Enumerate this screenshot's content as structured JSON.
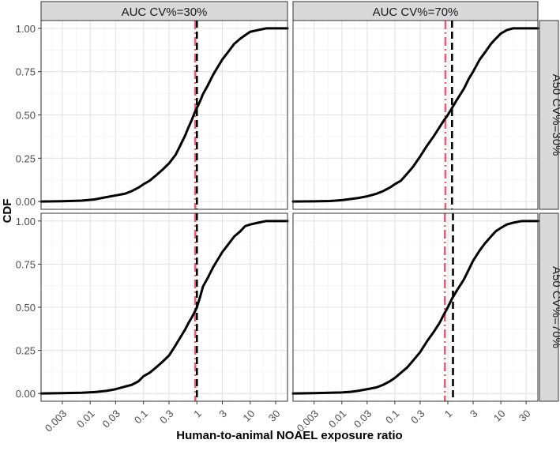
{
  "chart_data": {
    "type": "line",
    "title": "",
    "xlabel": "Human-to-animal NOAEL exposure ratio",
    "ylabel": "CDF",
    "x_scale": "log10",
    "xlim": [
      0.0012,
      50
    ],
    "ylim": [
      -0.045,
      1.045
    ],
    "x_ticks": [
      0.003,
      0.01,
      0.03,
      0.1,
      0.3,
      1,
      3,
      10,
      30
    ],
    "x_tick_labels": [
      "0.003",
      "0.01",
      "0.03",
      "0.1",
      "0.3",
      "1",
      "3",
      "10",
      "30"
    ],
    "y_ticks": [
      0,
      0.25,
      0.5,
      0.75,
      1
    ],
    "y_tick_labels": [
      "0.00",
      "0.25",
      "0.50",
      "0.75",
      "1.00"
    ],
    "grid": true,
    "column_strips": [
      "AUC CV%=30%",
      "AUC CV%=70%"
    ],
    "row_strips": [
      "A50 CV%=30%",
      "A50 CV%=70%"
    ],
    "reference_lines": [
      {
        "name": "red-dashdot-reference",
        "color": "#e0607e",
        "style": "dashdot"
      },
      {
        "name": "black-dashed-reference",
        "color": "#000000",
        "style": "dashed"
      }
    ],
    "panels": [
      {
        "row": 0,
        "col": 0,
        "ref_red_x": 0.93,
        "ref_black_x": 1.0,
        "cdf": {
          "x": [
            0.0012,
            0.003,
            0.007,
            0.012,
            0.02,
            0.03,
            0.045,
            0.06,
            0.08,
            0.1,
            0.13,
            0.17,
            0.22,
            0.3,
            0.4,
            0.5,
            0.6,
            0.7,
            0.8,
            0.9,
            1.0,
            1.15,
            1.3,
            1.6,
            2.0,
            2.5,
            3.0,
            4.0,
            5.0,
            6.5,
            8.0,
            10,
            14,
            20,
            50
          ],
          "y": [
            0.0,
            0.002,
            0.005,
            0.012,
            0.025,
            0.035,
            0.045,
            0.06,
            0.08,
            0.1,
            0.12,
            0.15,
            0.18,
            0.22,
            0.27,
            0.33,
            0.38,
            0.43,
            0.47,
            0.51,
            0.54,
            0.58,
            0.62,
            0.67,
            0.73,
            0.78,
            0.82,
            0.87,
            0.91,
            0.94,
            0.96,
            0.98,
            0.99,
            1.0,
            1.0
          ]
        }
      },
      {
        "row": 0,
        "col": 1,
        "ref_red_x": 0.9,
        "ref_black_x": 1.2,
        "cdf": {
          "x": [
            0.0012,
            0.003,
            0.006,
            0.01,
            0.015,
            0.02,
            0.03,
            0.045,
            0.06,
            0.08,
            0.1,
            0.13,
            0.17,
            0.22,
            0.3,
            0.4,
            0.55,
            0.7,
            0.85,
            1.0,
            1.2,
            1.5,
            2.0,
            2.5,
            3.0,
            4.0,
            5.0,
            6.5,
            8.0,
            10,
            13,
            17,
            25,
            50
          ],
          "y": [
            0.0,
            0.001,
            0.003,
            0.008,
            0.015,
            0.02,
            0.03,
            0.045,
            0.06,
            0.08,
            0.1,
            0.12,
            0.16,
            0.2,
            0.26,
            0.32,
            0.38,
            0.43,
            0.47,
            0.5,
            0.54,
            0.59,
            0.65,
            0.71,
            0.75,
            0.82,
            0.86,
            0.91,
            0.94,
            0.97,
            0.99,
            1.0,
            1.0,
            1.0
          ]
        }
      },
      {
        "row": 1,
        "col": 0,
        "ref_red_x": 0.93,
        "ref_black_x": 1.0,
        "cdf": {
          "x": [
            0.0012,
            0.003,
            0.007,
            0.012,
            0.02,
            0.03,
            0.045,
            0.06,
            0.08,
            0.1,
            0.13,
            0.17,
            0.22,
            0.3,
            0.4,
            0.5,
            0.6,
            0.7,
            0.8,
            0.9,
            1.0,
            1.15,
            1.3,
            1.6,
            2.0,
            2.5,
            3.0,
            4.0,
            5.0,
            6.5,
            8.0,
            10,
            14,
            20,
            50
          ],
          "y": [
            0.0,
            0.002,
            0.004,
            0.008,
            0.015,
            0.025,
            0.04,
            0.05,
            0.07,
            0.1,
            0.12,
            0.15,
            0.18,
            0.22,
            0.28,
            0.33,
            0.37,
            0.41,
            0.44,
            0.47,
            0.5,
            0.56,
            0.62,
            0.67,
            0.73,
            0.78,
            0.82,
            0.87,
            0.91,
            0.94,
            0.97,
            0.98,
            0.99,
            1.0,
            1.0
          ]
        }
      },
      {
        "row": 1,
        "col": 1,
        "ref_red_x": 0.88,
        "ref_black_x": 1.25,
        "cdf": {
          "x": [
            0.0012,
            0.003,
            0.006,
            0.01,
            0.015,
            0.02,
            0.03,
            0.045,
            0.06,
            0.08,
            0.1,
            0.13,
            0.17,
            0.22,
            0.3,
            0.4,
            0.55,
            0.7,
            0.85,
            1.0,
            1.2,
            1.5,
            2.0,
            2.5,
            3.0,
            4.0,
            5.0,
            6.5,
            8.0,
            10,
            13,
            17,
            25,
            50
          ],
          "y": [
            0.0,
            0.002,
            0.004,
            0.006,
            0.01,
            0.015,
            0.025,
            0.035,
            0.05,
            0.07,
            0.09,
            0.12,
            0.15,
            0.19,
            0.24,
            0.3,
            0.36,
            0.41,
            0.46,
            0.5,
            0.55,
            0.6,
            0.66,
            0.72,
            0.77,
            0.83,
            0.87,
            0.91,
            0.94,
            0.96,
            0.98,
            0.99,
            1.0,
            1.0
          ]
        }
      }
    ]
  }
}
